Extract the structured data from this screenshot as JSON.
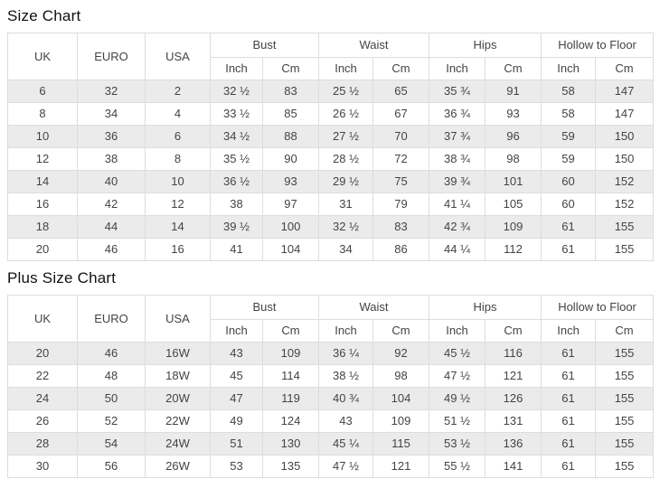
{
  "colors": {
    "stripe": "#ebebeb",
    "border": "#dddddd",
    "text": "#444444",
    "title": "#111111",
    "bg": "#ffffff"
  },
  "chart_data": [
    {
      "type": "table",
      "title": "Size Chart",
      "columns": {
        "uk": "UK",
        "euro": "EURO",
        "usa": "USA",
        "groups": [
          "Bust",
          "Waist",
          "Hips",
          "Hollow to Floor"
        ],
        "sub": [
          "Inch",
          "Cm",
          "Inch",
          "Cm",
          "Inch",
          "Cm",
          "Inch",
          "Cm"
        ]
      },
      "rows": [
        [
          "6",
          "32",
          "2",
          "32 ½",
          "83",
          "25 ½",
          "65",
          "35 ¾",
          "91",
          "58",
          "147"
        ],
        [
          "8",
          "34",
          "4",
          "33 ½",
          "85",
          "26 ½",
          "67",
          "36 ¾",
          "93",
          "58",
          "147"
        ],
        [
          "10",
          "36",
          "6",
          "34 ½",
          "88",
          "27 ½",
          "70",
          "37 ¾",
          "96",
          "59",
          "150"
        ],
        [
          "12",
          "38",
          "8",
          "35 ½",
          "90",
          "28 ½",
          "72",
          "38 ¾",
          "98",
          "59",
          "150"
        ],
        [
          "14",
          "40",
          "10",
          "36 ½",
          "93",
          "29 ½",
          "75",
          "39 ¾",
          "101",
          "60",
          "152"
        ],
        [
          "16",
          "42",
          "12",
          "38",
          "97",
          "31",
          "79",
          "41 ¼",
          "105",
          "60",
          "152"
        ],
        [
          "18",
          "44",
          "14",
          "39 ½",
          "100",
          "32 ½",
          "83",
          "42 ¾",
          "109",
          "61",
          "155"
        ],
        [
          "20",
          "46",
          "16",
          "41",
          "104",
          "34",
          "86",
          "44 ¼",
          "112",
          "61",
          "155"
        ]
      ]
    },
    {
      "type": "table",
      "title": "Plus Size Chart",
      "columns": {
        "uk": "UK",
        "euro": "EURO",
        "usa": "USA",
        "groups": [
          "Bust",
          "Waist",
          "Hips",
          "Hollow to Floor"
        ],
        "sub": [
          "Inch",
          "Cm",
          "Inch",
          "Cm",
          "Inch",
          "Cm",
          "Inch",
          "Cm"
        ]
      },
      "rows": [
        [
          "20",
          "46",
          "16W",
          "43",
          "109",
          "36 ¼",
          "92",
          "45 ½",
          "116",
          "61",
          "155"
        ],
        [
          "22",
          "48",
          "18W",
          "45",
          "114",
          "38 ½",
          "98",
          "47 ½",
          "121",
          "61",
          "155"
        ],
        [
          "24",
          "50",
          "20W",
          "47",
          "119",
          "40 ¾",
          "104",
          "49 ½",
          "126",
          "61",
          "155"
        ],
        [
          "26",
          "52",
          "22W",
          "49",
          "124",
          "43",
          "109",
          "51 ½",
          "131",
          "61",
          "155"
        ],
        [
          "28",
          "54",
          "24W",
          "51",
          "130",
          "45 ¼",
          "115",
          "53 ½",
          "136",
          "61",
          "155"
        ],
        [
          "30",
          "56",
          "26W",
          "53",
          "135",
          "47 ½",
          "121",
          "55 ½",
          "141",
          "61",
          "155"
        ]
      ]
    }
  ]
}
